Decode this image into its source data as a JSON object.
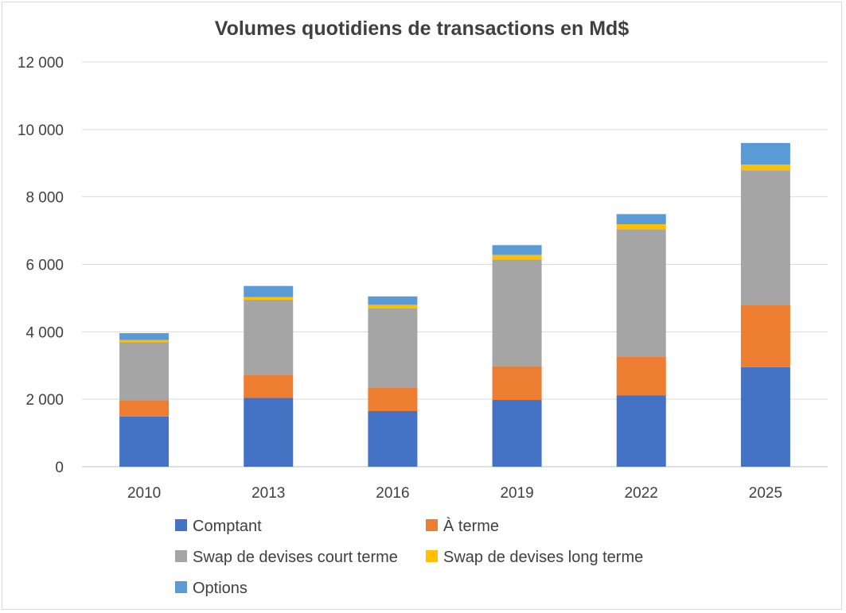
{
  "chart_data": {
    "type": "bar",
    "stacked": true,
    "title": "Volumes quotidiens de transactions en Md$",
    "xlabel": "",
    "ylabel": "",
    "categories": [
      "2010",
      "2013",
      "2016",
      "2019",
      "2022",
      "2025"
    ],
    "ylim": [
      0,
      12000
    ],
    "yticks": [
      0,
      2000,
      4000,
      6000,
      8000,
      10000,
      12000
    ],
    "ytick_labels": [
      "0",
      "2 000",
      "4 000",
      "6 000",
      "8 000",
      "10 000",
      "12 000"
    ],
    "grid": true,
    "legend_position": "bottom",
    "series": [
      {
        "name": "Comptant",
        "color": "#4472c4",
        "values": [
          1490,
          2040,
          1650,
          1980,
          2110,
          2950
        ]
      },
      {
        "name": "À terme",
        "color": "#ed7d31",
        "values": [
          480,
          680,
          700,
          1000,
          1160,
          1850
        ]
      },
      {
        "name": "Swap de devises court terme",
        "color": "#a5a5a5",
        "values": [
          1720,
          2230,
          2350,
          3160,
          3770,
          3990
        ]
      },
      {
        "name": "Swap de devises long terme",
        "color": "#ffc000",
        "values": [
          70,
          80,
          100,
          140,
          150,
          170
        ]
      },
      {
        "name": "Options",
        "color": "#5b9bd5",
        "values": [
          200,
          330,
          250,
          290,
          300,
          640
        ]
      }
    ]
  }
}
